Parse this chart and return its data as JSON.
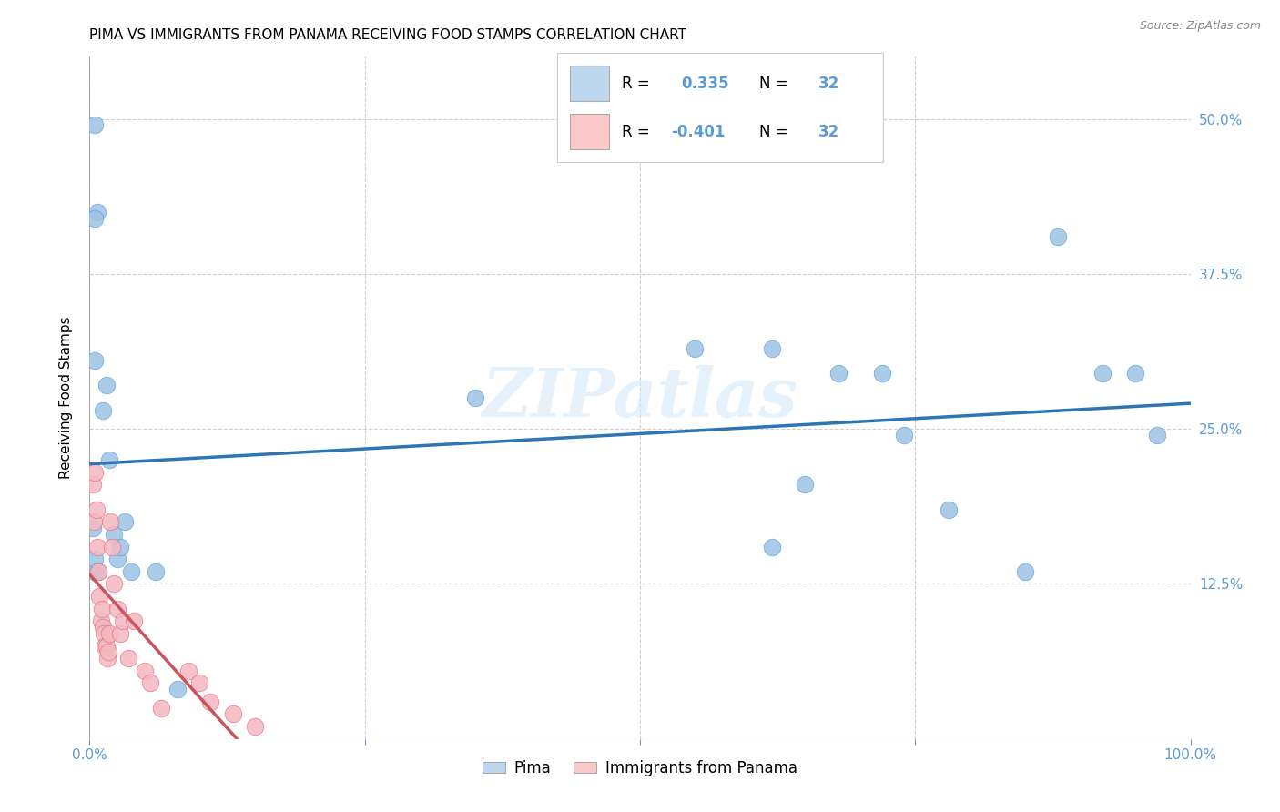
{
  "title": "PIMA VS IMMIGRANTS FROM PANAMA RECEIVING FOOD STAMPS CORRELATION CHART",
  "source": "Source: ZipAtlas.com",
  "xlabel_color": "#5b9bd5",
  "ylabel": "Receiving Food Stamps",
  "watermark": "ZIPatlas",
  "xlim": [
    0.0,
    1.0
  ],
  "ylim": [
    0.0,
    0.55
  ],
  "ytick_positions": [
    0.125,
    0.25,
    0.375,
    0.5
  ],
  "ytick_labels": [
    "12.5%",
    "25.0%",
    "37.5%",
    "50.0%"
  ],
  "xtick_positions": [
    0.0,
    1.0
  ],
  "xtick_labels": [
    "0.0%",
    "100.0%"
  ],
  "legend_color_blue": "#bdd7ee",
  "legend_color_pink": "#fcc9c9",
  "pima_color": "#9dc3e6",
  "panama_color": "#f4b8c1",
  "pima_edge_color": "#5b9bd5",
  "panama_edge_color": "#e06c7a",
  "pima_line_color": "#2e75b6",
  "panama_line_color": "#c9545e",
  "pima_line_solid_end": 1.0,
  "panama_line_solid_end": 0.17,
  "panama_line_dash_end": 0.35,
  "background_color": "#ffffff",
  "grid_color": "#d0d0d0",
  "right_ytick_color": "#5b9bd5",
  "title_fontsize": 11,
  "pima_x": [
    0.005,
    0.007,
    0.012,
    0.015,
    0.018,
    0.022,
    0.025,
    0.028,
    0.032,
    0.038,
    0.005,
    0.008,
    0.35,
    0.62,
    0.65,
    0.68,
    0.72,
    0.74,
    0.78,
    0.85,
    0.88,
    0.92,
    0.95,
    0.97,
    0.62,
    0.55,
    0.005,
    0.005,
    0.003,
    0.06,
    0.08,
    0.005
  ],
  "pima_y": [
    0.305,
    0.425,
    0.265,
    0.285,
    0.225,
    0.165,
    0.145,
    0.155,
    0.175,
    0.135,
    0.135,
    0.135,
    0.275,
    0.315,
    0.205,
    0.295,
    0.295,
    0.245,
    0.185,
    0.135,
    0.405,
    0.295,
    0.295,
    0.245,
    0.155,
    0.315,
    0.495,
    0.42,
    0.17,
    0.135,
    0.04,
    0.145
  ],
  "panama_x": [
    0.003,
    0.004,
    0.005,
    0.006,
    0.007,
    0.008,
    0.009,
    0.01,
    0.011,
    0.012,
    0.013,
    0.014,
    0.015,
    0.016,
    0.017,
    0.018,
    0.019,
    0.02,
    0.022,
    0.025,
    0.028,
    0.03,
    0.035,
    0.04,
    0.05,
    0.055,
    0.065,
    0.09,
    0.1,
    0.11,
    0.13,
    0.15
  ],
  "panama_y": [
    0.205,
    0.175,
    0.215,
    0.185,
    0.155,
    0.135,
    0.115,
    0.095,
    0.105,
    0.09,
    0.085,
    0.075,
    0.075,
    0.065,
    0.07,
    0.085,
    0.175,
    0.155,
    0.125,
    0.105,
    0.085,
    0.095,
    0.065,
    0.095,
    0.055,
    0.045,
    0.025,
    0.055,
    0.045,
    0.03,
    0.02,
    0.01
  ]
}
